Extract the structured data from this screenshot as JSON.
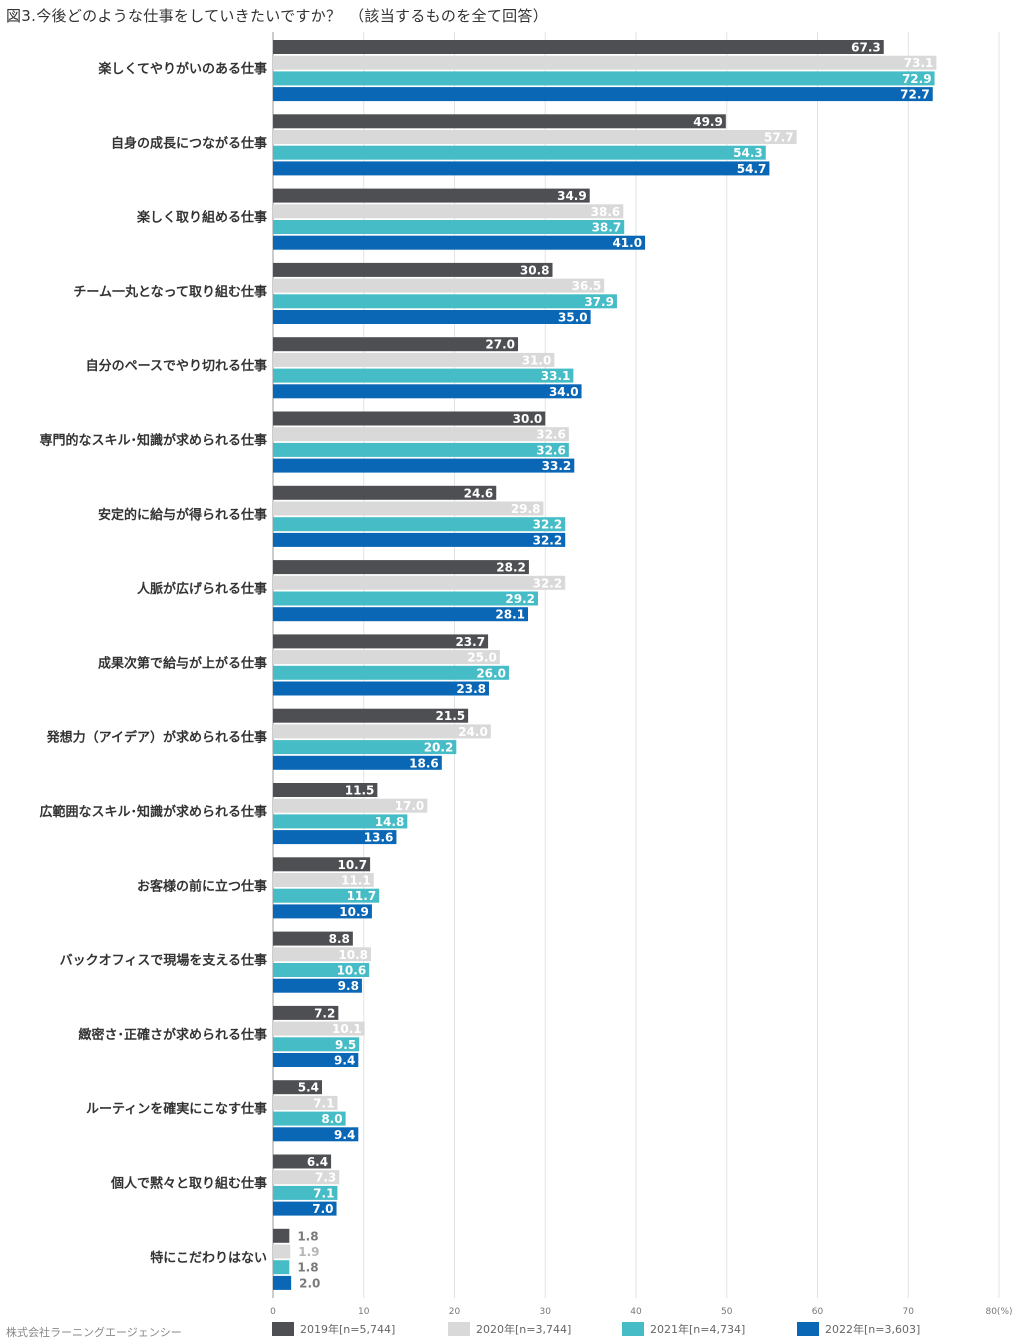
{
  "chart_data": {
    "type": "bar",
    "orientation": "horizontal",
    "title": "図3.今後どのような仕事をしていきたいですか？　（該当するものを全て回答）",
    "source": "株式会社ラーニングエージェンシー",
    "categories": [
      "楽しくてやりがいのある仕事",
      "自身の成長につながる仕事",
      "楽しく取り組める仕事",
      "チーム一丸となって取り組む仕事",
      "自分のペースでやり切れる仕事",
      "専門的なスキル･知識が求められる仕事",
      "安定的に給与が得られる仕事",
      "人脈が広げられる仕事",
      "成果次第で給与が上がる仕事",
      "発想力（アイデア）が求められる仕事",
      "広範囲なスキル･知識が求められる仕事",
      "お客様の前に立つ仕事",
      "バックオフィスで現場を支える仕事",
      "緻密さ･正確さが求められる仕事",
      "ルーティンを確実にこなす仕事",
      "個人で黙々と取り組む仕事",
      "特にこだわりはない"
    ],
    "series": [
      {
        "name": "2019年[n=5,744]",
        "color": "#4d4f53",
        "values": [
          67.3,
          49.9,
          34.9,
          30.8,
          27.0,
          30.0,
          24.6,
          28.2,
          23.7,
          21.5,
          11.5,
          10.7,
          8.8,
          7.2,
          5.4,
          6.4,
          1.8
        ]
      },
      {
        "name": "2020年[n=3,744]",
        "color": "#d9d9d9",
        "values": [
          73.1,
          57.7,
          38.6,
          36.5,
          31.0,
          32.6,
          29.8,
          32.2,
          25.0,
          24.0,
          17.0,
          11.1,
          10.8,
          10.1,
          7.1,
          7.3,
          1.9
        ]
      },
      {
        "name": "2021年[n=4,734]",
        "color": "#45bcc6",
        "values": [
          72.9,
          54.3,
          38.7,
          37.9,
          33.1,
          32.6,
          32.2,
          29.2,
          26.0,
          20.2,
          14.8,
          11.7,
          10.6,
          9.5,
          8.0,
          7.1,
          1.8
        ]
      },
      {
        "name": "2022年[n=3,603]",
        "color": "#0a67b5",
        "values": [
          72.7,
          54.7,
          41.0,
          35.0,
          34.0,
          33.2,
          32.2,
          28.1,
          23.8,
          18.6,
          13.6,
          10.9,
          9.8,
          9.4,
          9.4,
          7.0,
          2.0
        ]
      }
    ],
    "value_labels": [
      [
        "67.3",
        "73.1",
        "72.9",
        "72.7"
      ],
      [
        "49.9",
        "57.7",
        "54.3",
        "54.7"
      ],
      [
        "34.9",
        "38.6",
        "38.7",
        "41.0"
      ],
      [
        "30.8",
        "36.5",
        "37.9",
        "35.0"
      ],
      [
        "27.0",
        "31.0",
        "33.1",
        "34.0"
      ],
      [
        "30.0",
        "32.6",
        "32.6",
        "33.2"
      ],
      [
        "24.6",
        "29.8",
        "32.2",
        "32.2"
      ],
      [
        "28.2",
        "32.2",
        "29.2",
        "28.1"
      ],
      [
        "23.7",
        "25.0",
        "26.0",
        "23.8"
      ],
      [
        "21.5",
        "24.0",
        "20.2",
        "18.6"
      ],
      [
        "11.5",
        "17.0",
        "14.8",
        "13.6"
      ],
      [
        "10.7",
        "11.1",
        "11.7",
        "10.9"
      ],
      [
        "8.8",
        "10.8",
        "10.6",
        "9.8"
      ],
      [
        "7.2",
        "10.1",
        "9.5",
        "9.4"
      ],
      [
        "5.4",
        "7.1",
        "8.0",
        "9.4"
      ],
      [
        "6.4",
        "7.3",
        "7.1",
        "7.0"
      ],
      [
        "1.8",
        "1.9",
        "1.8",
        "2.0"
      ]
    ],
    "xlim": [
      0,
      80
    ],
    "ticks": [
      0,
      10,
      20,
      30,
      40,
      50,
      60,
      70,
      80
    ],
    "tick_labels": [
      "0",
      "10",
      "20",
      "30",
      "40",
      "50",
      "60",
      "70",
      "80(%)"
    ],
    "grid": true,
    "legend_position": "bottom"
  }
}
